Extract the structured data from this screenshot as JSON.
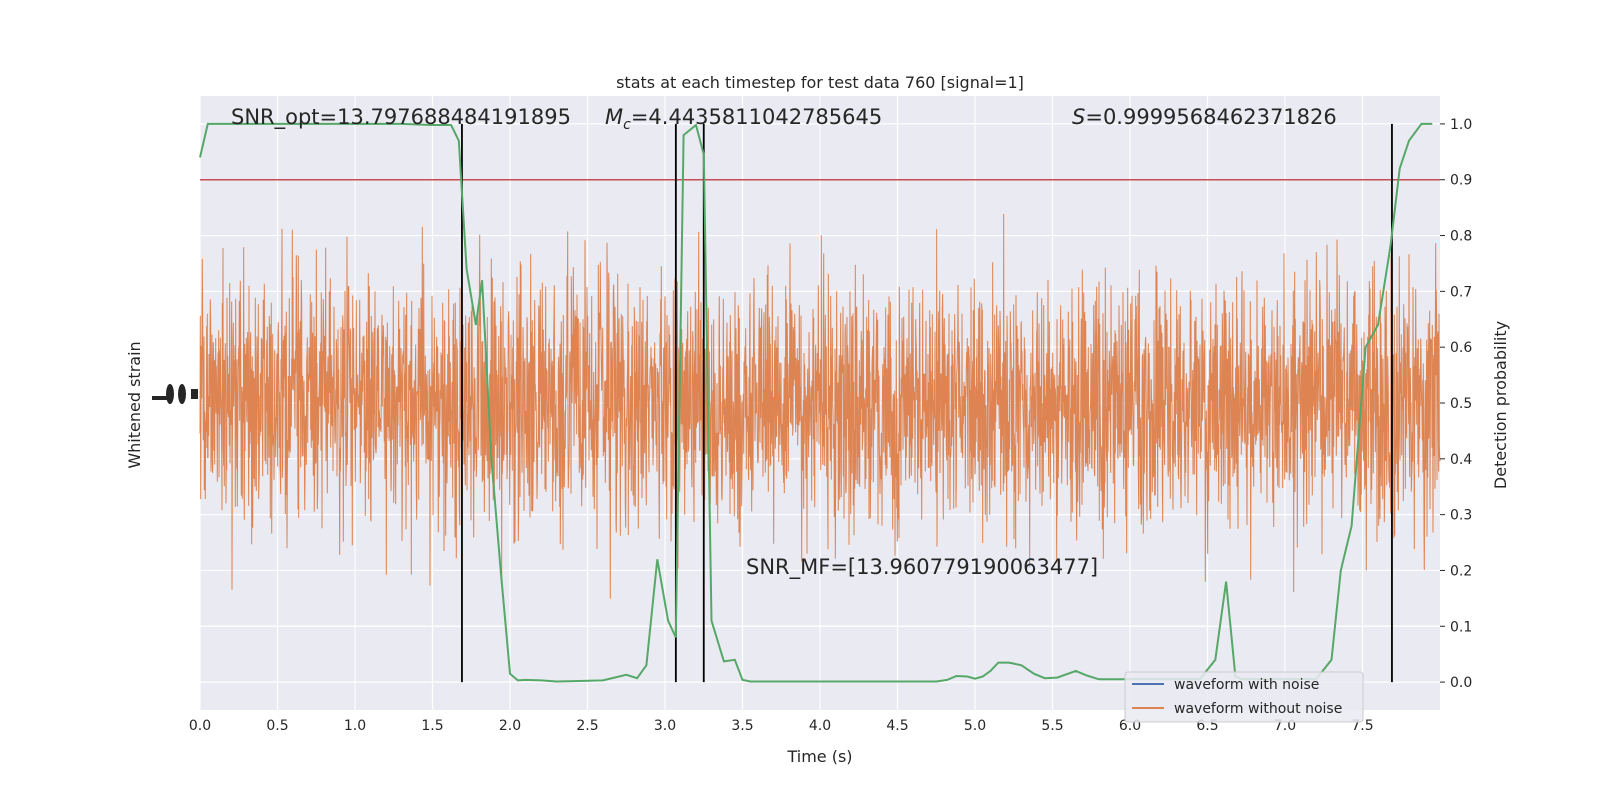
{
  "chart_data": {
    "type": "line",
    "title": "stats at each timestep for test data 760 [signal=1]",
    "xlabel": "Time (s)",
    "ylabel_left": "Whitened strain",
    "ylabel_right": "Detection probability",
    "xlim": [
      0.0,
      8.0
    ],
    "ylim_right": [
      -0.05,
      1.05
    ],
    "x_ticks": [
      "0.0",
      "0.5",
      "1.0",
      "1.5",
      "2.0",
      "2.5",
      "3.0",
      "3.5",
      "4.0",
      "4.5",
      "5.0",
      "5.5",
      "6.0",
      "6.5",
      "7.0",
      "7.5"
    ],
    "y_right_ticks": [
      "0.0",
      "0.1",
      "0.2",
      "0.3",
      "0.4",
      "0.5",
      "0.6",
      "0.7",
      "0.8",
      "0.9",
      "1.0"
    ],
    "annotations": {
      "snr_opt": "SNR_opt=13.797688484191895",
      "mc_symbol": "M",
      "mc_sub": "c",
      "mc_value": "=4.4435811042785645",
      "s_symbol": "S",
      "s_value": "=0.9999568462371826",
      "snr_mf": "SNR_MF=[13.960779190063477]"
    },
    "threshold": 0.9,
    "vertical_lines_x": [
      1.69,
      3.07,
      3.25,
      7.69
    ],
    "detection_probability": {
      "x": [
        0.0,
        0.05,
        0.1,
        0.3,
        0.5,
        0.7,
        0.9,
        1.1,
        1.3,
        1.5,
        1.62,
        1.67,
        1.72,
        1.78,
        1.82,
        1.88,
        1.94,
        2.0,
        2.05,
        2.1,
        2.2,
        2.3,
        2.45,
        2.6,
        2.75,
        2.82,
        2.88,
        2.95,
        3.02,
        3.07,
        3.12,
        3.2,
        3.25,
        3.3,
        3.38,
        3.45,
        3.5,
        3.55,
        3.8,
        4.1,
        4.3,
        4.5,
        4.75,
        4.82,
        4.88,
        4.95,
        5.0,
        5.05,
        5.1,
        5.15,
        5.22,
        5.3,
        5.38,
        5.45,
        5.53,
        5.65,
        5.72,
        5.8,
        5.95,
        6.2,
        6.45,
        6.55,
        6.62,
        6.68,
        6.72,
        7.2,
        7.3,
        7.36,
        7.43,
        7.52,
        7.6,
        7.68,
        7.74,
        7.8,
        7.88,
        7.95
      ],
      "y": [
        0.94,
        1.0,
        1.0,
        1.0,
        1.0,
        1.0,
        1.0,
        1.0,
        1.0,
        0.998,
        0.998,
        0.97,
        0.74,
        0.64,
        0.72,
        0.4,
        0.2,
        0.015,
        0.003,
        0.004,
        0.003,
        0.001,
        0.002,
        0.003,
        0.013,
        0.007,
        0.03,
        0.22,
        0.11,
        0.08,
        0.98,
        0.998,
        0.945,
        0.11,
        0.037,
        0.04,
        0.004,
        0.001,
        0.001,
        0.001,
        0.001,
        0.001,
        0.001,
        0.004,
        0.011,
        0.01,
        0.006,
        0.01,
        0.02,
        0.035,
        0.035,
        0.03,
        0.015,
        0.007,
        0.008,
        0.02,
        0.012,
        0.005,
        0.005,
        0.005,
        0.005,
        0.04,
        0.18,
        0.01,
        0.005,
        0.005,
        0.04,
        0.2,
        0.28,
        0.6,
        0.64,
        0.78,
        0.92,
        0.97,
        1.0,
        1.0
      ]
    },
    "legend": {
      "placement": "lower-right",
      "entries": [
        {
          "name": "waveform with noise",
          "color": "#4c72b0"
        },
        {
          "name": "waveform without noise",
          "color": "#dd8452"
        }
      ]
    },
    "colors": {
      "background": "#eaeaf2",
      "grid": "#ffffff",
      "strain": "#dd8452",
      "probability": "#55a868",
      "threshold": "#c44e52",
      "vline": "#000000"
    }
  }
}
